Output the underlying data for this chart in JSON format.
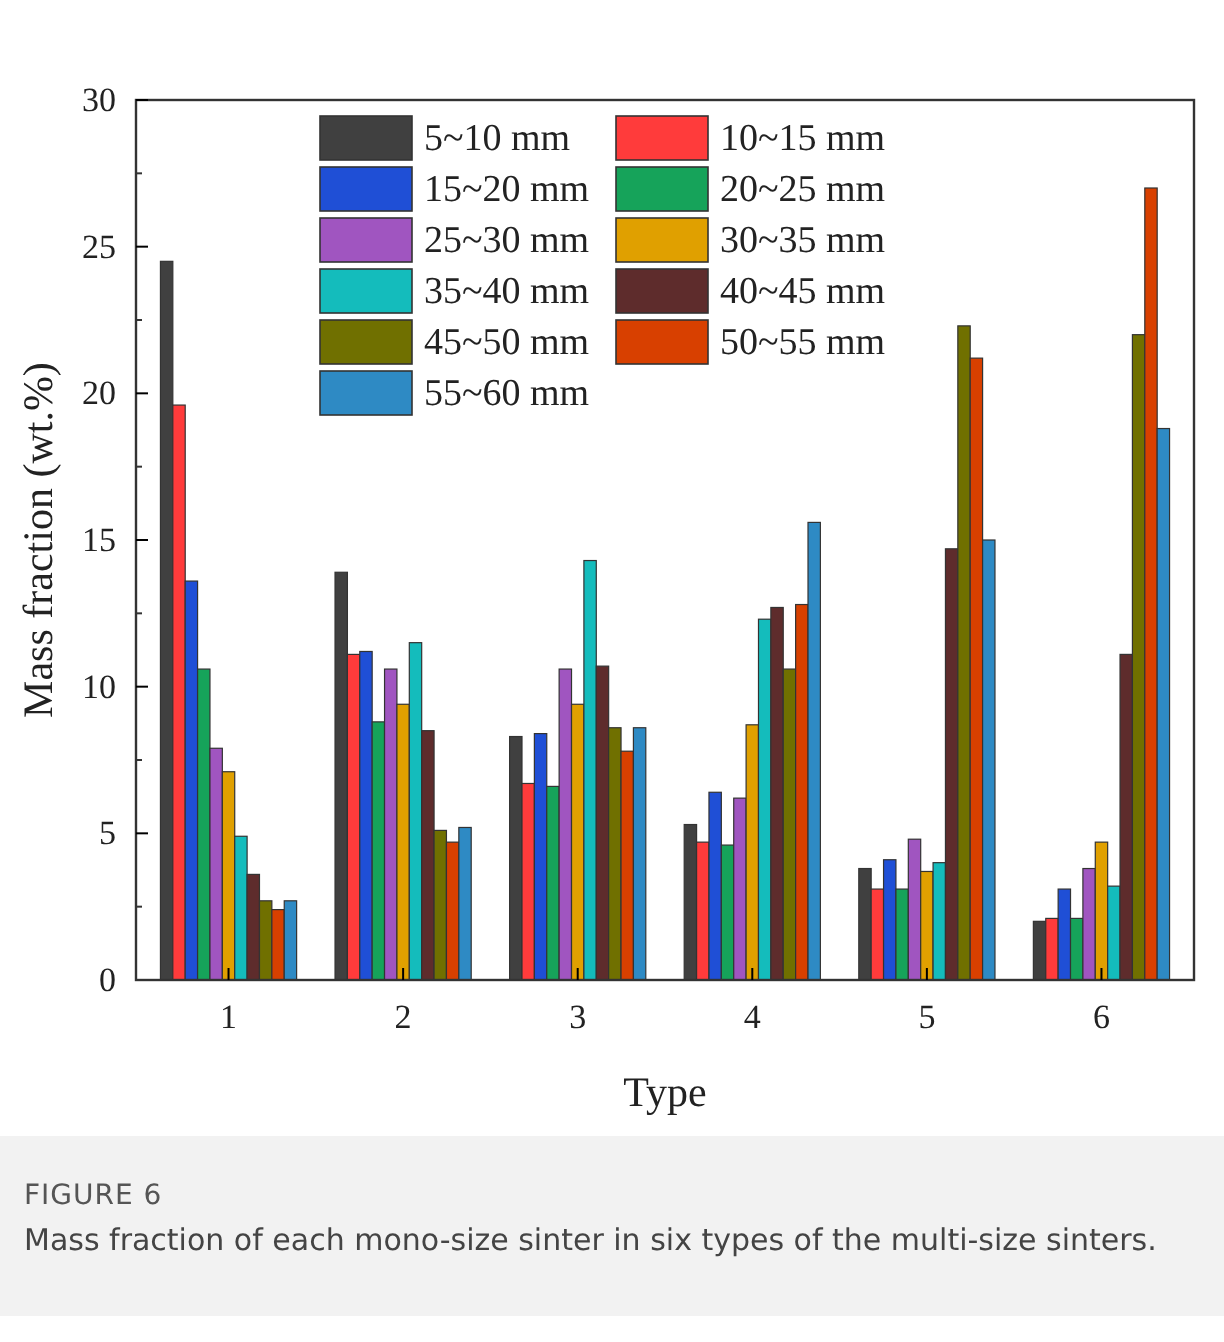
{
  "chart_data": {
    "type": "bar",
    "xlabel": "Type",
    "ylabel": "Mass fraction (wt.%)",
    "categories": [
      "1",
      "2",
      "3",
      "4",
      "5",
      "6"
    ],
    "ylim": [
      0,
      30
    ],
    "yticks": [
      0,
      5,
      10,
      15,
      20,
      25,
      30
    ],
    "legend": "top left",
    "series": [
      {
        "name": "5~10 mm",
        "color": "#404040",
        "values": [
          24.5,
          13.9,
          8.3,
          5.3,
          3.8,
          2.0
        ]
      },
      {
        "name": "10~15 mm",
        "color": "#ff3b3b",
        "values": [
          19.6,
          11.1,
          6.7,
          4.7,
          3.1,
          2.1
        ]
      },
      {
        "name": "15~20 mm",
        "color": "#1f4fd6",
        "values": [
          13.6,
          11.2,
          8.4,
          6.4,
          4.1,
          3.1
        ]
      },
      {
        "name": "20~25 mm",
        "color": "#16a35a",
        "values": [
          10.6,
          8.8,
          6.6,
          4.6,
          3.1,
          2.1
        ]
      },
      {
        "name": "25~30 mm",
        "color": "#a055c0",
        "values": [
          7.9,
          10.6,
          10.6,
          6.2,
          4.8,
          3.8
        ]
      },
      {
        "name": "30~35 mm",
        "color": "#e0a000",
        "values": [
          7.1,
          9.4,
          9.4,
          8.7,
          3.7,
          4.7
        ]
      },
      {
        "name": "35~40 mm",
        "color": "#14bcbc",
        "values": [
          4.9,
          11.5,
          14.3,
          12.3,
          4.0,
          3.2
        ]
      },
      {
        "name": "40~45 mm",
        "color": "#5e2c2c",
        "values": [
          3.6,
          8.5,
          10.7,
          12.7,
          14.7,
          11.1
        ]
      },
      {
        "name": "45~50 mm",
        "color": "#707000",
        "values": [
          2.7,
          5.1,
          8.6,
          10.6,
          22.3,
          22.0
        ]
      },
      {
        "name": "50~55 mm",
        "color": "#d84000",
        "values": [
          2.4,
          4.7,
          7.8,
          12.8,
          21.2,
          27.0
        ]
      },
      {
        "name": "55~60 mm",
        "color": "#2e8ac4",
        "values": [
          2.7,
          5.2,
          8.6,
          15.6,
          15.0,
          18.8
        ]
      }
    ],
    "annotations": [
      "FIGURE 6",
      "Mass fraction of each mono-size sinter in six types of the multi-size sinters."
    ]
  }
}
